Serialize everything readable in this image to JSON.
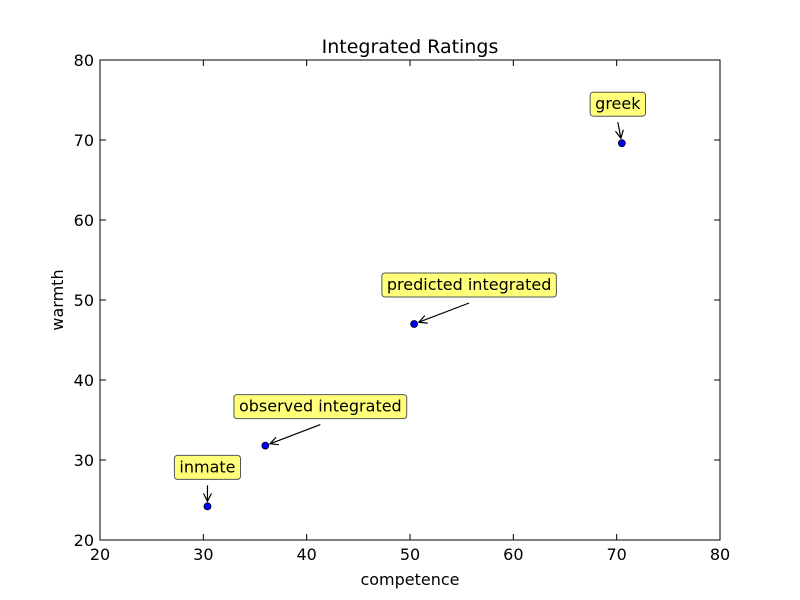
{
  "chart_data": {
    "type": "scatter",
    "title": "Integrated Ratings",
    "xlabel": "competence",
    "ylabel": "warmth",
    "xlim": [
      20,
      80
    ],
    "ylim": [
      20,
      80
    ],
    "xticks": [
      20,
      30,
      40,
      50,
      60,
      70,
      80
    ],
    "yticks": [
      20,
      30,
      40,
      50,
      60,
      70,
      80
    ],
    "grid": false,
    "marker_color": "#0000ff",
    "annotation_box_color": "#ffff7a",
    "points": [
      {
        "label": "inmate",
        "x": 30.4,
        "y": 24.2
      },
      {
        "label": "observed integrated",
        "x": 36.0,
        "y": 31.8
      },
      {
        "label": "predicted integrated",
        "x": 50.4,
        "y": 47.0
      },
      {
        "label": "greek",
        "x": 70.5,
        "y": 69.6
      }
    ]
  }
}
